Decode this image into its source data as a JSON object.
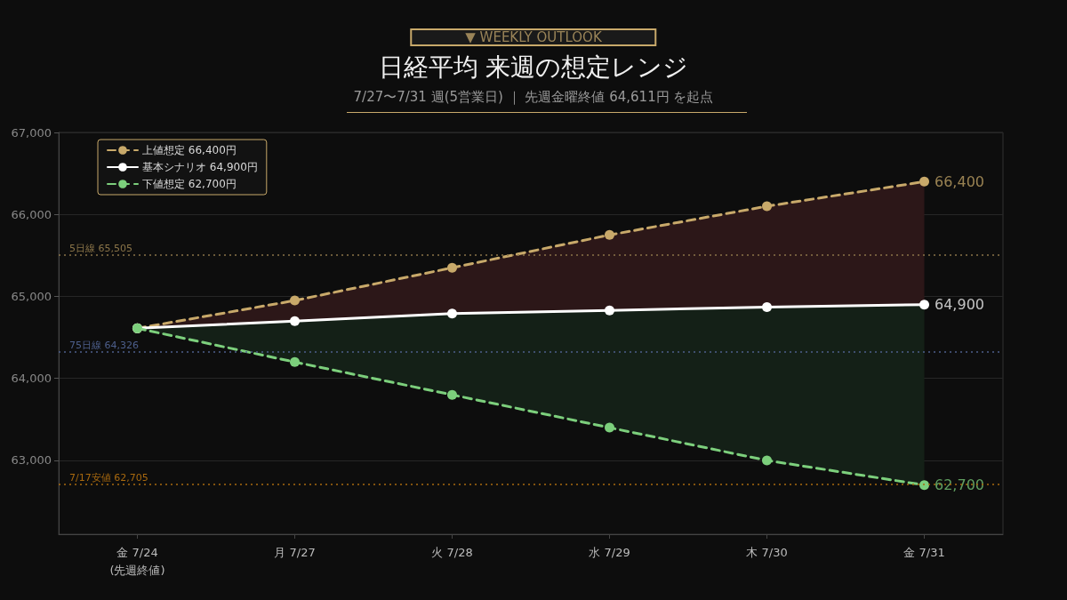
{
  "chart_data": {
    "type": "line",
    "title": "日経平均 来週の想定レンジ",
    "subtitle": "7/27〜7/31 週(5営業日) ｜ 先週金曜終値 64,611円 を起点",
    "annotations": [
      "▼ WEEKLY OUTLOOK"
    ],
    "categories": [
      "金 7/24\n(先週終値)",
      "月 7/27",
      "火 7/28",
      "水 7/29",
      "木 7/30",
      "金 7/31"
    ],
    "series": [
      {
        "name": "上値想定 66,400円",
        "color": "#c8a96a",
        "line_style": "dashed",
        "values": [
          64611,
          64950,
          65350,
          65750,
          66100,
          66400
        ],
        "lower": [
          64611,
          64700,
          64790,
          64830,
          64870,
          64900
        ],
        "upper": [
          64611,
          64950,
          65350,
          65750,
          66100,
          66400
        ],
        "value_labels": [
          null,
          null,
          null,
          null,
          null,
          "66,400"
        ]
      },
      {
        "name": "基本シナリオ 64,900円",
        "color": "#ffffff",
        "line_style": "solid",
        "values": [
          64611,
          64700,
          64790,
          64830,
          64870,
          64900
        ],
        "value_labels": [
          null,
          null,
          null,
          null,
          null,
          "64,900"
        ]
      },
      {
        "name": "下値想定 62,700円",
        "color": "#7ccf7c",
        "line_style": "dashed",
        "values": [
          64611,
          64200,
          63800,
          63400,
          63000,
          62700
        ],
        "lower": [
          64611,
          64200,
          63800,
          63400,
          63000,
          62700
        ],
        "upper": [
          64611,
          64700,
          64790,
          64830,
          64870,
          64900
        ],
        "value_labels": [
          null,
          null,
          null,
          null,
          null,
          "62,700"
        ]
      }
    ],
    "ylim": [
      62100,
      67000
    ],
    "yticks": [
      {
        "value": 63000,
        "label": "63,000"
      },
      {
        "value": 64000,
        "label": "64,000"
      },
      {
        "value": 65000,
        "label": "65,000"
      },
      {
        "value": 66000,
        "label": "66,000"
      },
      {
        "value": 67000,
        "label": "67,000"
      }
    ],
    "ref_lines": [
      {
        "axis": "y",
        "value": 65505,
        "label": "5日線 65,505",
        "color": "#8a7448",
        "line_style": "dotted"
      },
      {
        "axis": "y",
        "value": 64326,
        "label": "75日線 64,326",
        "color": "#4d5f8c",
        "line_style": "dotted"
      },
      {
        "axis": "y",
        "value": 62705,
        "label": "7/17安値 62,705",
        "color": "#a8690f",
        "line_style": "dotted"
      }
    ],
    "grid": "y",
    "legend": "top left",
    "marker": "circle"
  }
}
